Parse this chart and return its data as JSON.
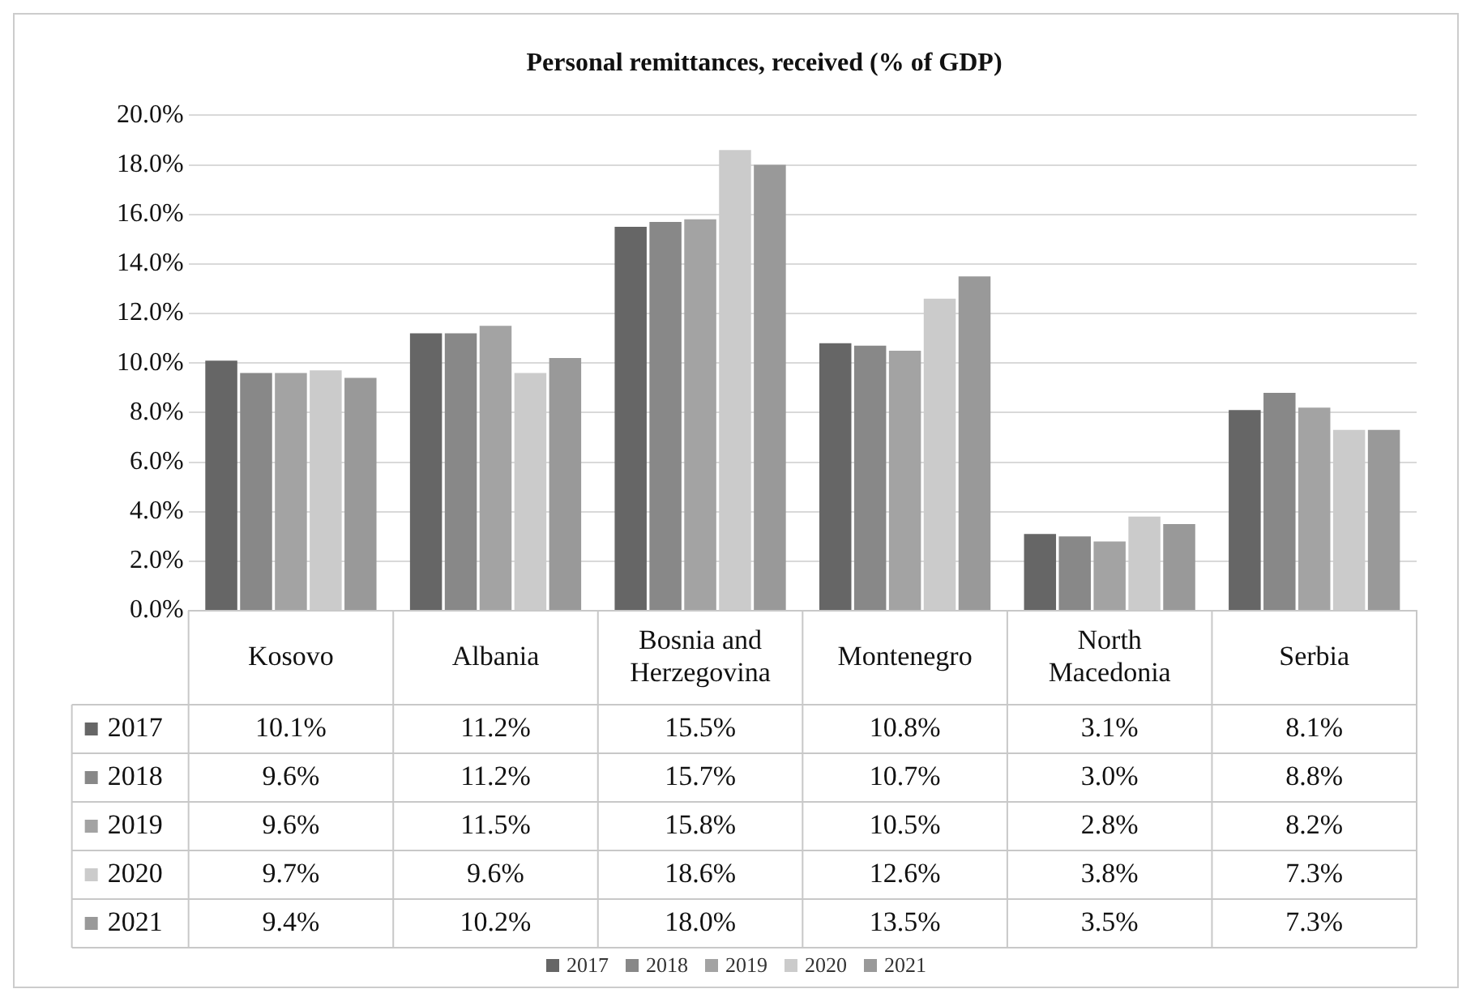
{
  "chart_data": {
    "type": "bar",
    "title": "Personal remittances, received (% of GDP)",
    "categories": [
      "Kosovo",
      "Albania",
      "Bosnia and Herzegovina",
      "Montenegro",
      "North Macedonia",
      "Serbia"
    ],
    "series": [
      {
        "name": "2017",
        "color": "#666666",
        "values": [
          10.1,
          11.2,
          15.5,
          10.8,
          3.1,
          8.1
        ],
        "value_labels": [
          "10.1%",
          "11.2%",
          "15.5%",
          "10.8%",
          "3.1%",
          "8.1%"
        ]
      },
      {
        "name": "2018",
        "color": "#888888",
        "values": [
          9.6,
          11.2,
          15.7,
          10.7,
          3.0,
          8.8
        ],
        "value_labels": [
          "9.6%",
          "11.2%",
          "15.7%",
          "10.7%",
          "3.0%",
          "8.8%"
        ]
      },
      {
        "name": "2019",
        "color": "#a3a3a3",
        "values": [
          9.6,
          11.5,
          15.8,
          10.5,
          2.8,
          8.2
        ],
        "value_labels": [
          "9.6%",
          "11.5%",
          "15.8%",
          "10.5%",
          "2.8%",
          "8.2%"
        ]
      },
      {
        "name": "2020",
        "color": "#cbcbcb",
        "values": [
          9.7,
          9.6,
          18.6,
          12.6,
          3.8,
          7.3
        ],
        "value_labels": [
          "9.7%",
          "9.6%",
          "18.6%",
          "12.6%",
          "3.8%",
          "7.3%"
        ]
      },
      {
        "name": "2021",
        "color": "#999999",
        "values": [
          9.4,
          10.2,
          18.0,
          13.5,
          3.5,
          7.3
        ],
        "value_labels": [
          "9.4%",
          "10.2%",
          "18.0%",
          "13.5%",
          "3.5%",
          "7.3%"
        ]
      }
    ],
    "ylim": [
      0,
      20
    ],
    "yticks": [
      {
        "value": 0,
        "label": "0.0%"
      },
      {
        "value": 2,
        "label": "2.0%"
      },
      {
        "value": 4,
        "label": "4.0%"
      },
      {
        "value": 6,
        "label": "6.0%"
      },
      {
        "value": 8,
        "label": "8.0%"
      },
      {
        "value": 10,
        "label": "10.0%"
      },
      {
        "value": 12,
        "label": "12.0%"
      },
      {
        "value": 14,
        "label": "14.0%"
      },
      {
        "value": 16,
        "label": "16.0%"
      },
      {
        "value": 18,
        "label": "18.0%"
      },
      {
        "value": 20,
        "label": "20.0%"
      }
    ],
    "grid": "y",
    "legend": "bottom"
  }
}
